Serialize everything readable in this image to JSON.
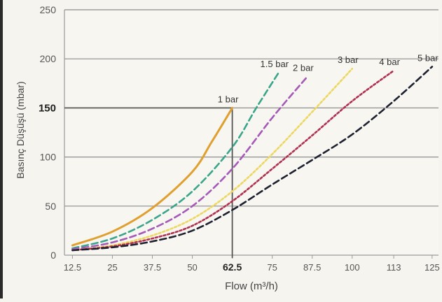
{
  "chart_data": {
    "type": "line",
    "title": "",
    "xlabel": "Flow (m³/h)",
    "ylabel": "Basınç Düşüşü (mbar)",
    "xlim": [
      10,
      127
    ],
    "ylim": [
      0,
      250
    ],
    "x_ticks": [
      12.5,
      25,
      37.5,
      50,
      62.5,
      75,
      87.5,
      100,
      113,
      125
    ],
    "x_tick_labels": [
      "12.5",
      "25",
      "37.5",
      "50",
      "62.5",
      "75",
      "87.5",
      "100",
      "113",
      "125"
    ],
    "y_ticks": [
      0,
      50,
      100,
      150,
      200,
      250
    ],
    "y_tick_labels": [
      "0",
      "50",
      "100",
      "150",
      "200",
      "250"
    ],
    "highlight": {
      "x": 62.5,
      "y": 150,
      "x_label": "62.5",
      "y_label": "150"
    },
    "grid": true,
    "series": [
      {
        "name": "1 bar",
        "color": "#e0a030",
        "dash": "solid",
        "points": [
          [
            12.5,
            10
          ],
          [
            25,
            24
          ],
          [
            37.5,
            48
          ],
          [
            50,
            85
          ],
          [
            56,
            115
          ],
          [
            62.5,
            150
          ]
        ]
      },
      {
        "name": "1.5 bar",
        "color": "#3aa58a",
        "dash": "dash",
        "points": [
          [
            12.5,
            7
          ],
          [
            25,
            17
          ],
          [
            37.5,
            36
          ],
          [
            50,
            65
          ],
          [
            62.5,
            110
          ],
          [
            70,
            150
          ],
          [
            77,
            186
          ]
        ]
      },
      {
        "name": "2 bar",
        "color": "#a55ab8",
        "dash": "dash",
        "points": [
          [
            12.5,
            6
          ],
          [
            25,
            13
          ],
          [
            37.5,
            27
          ],
          [
            50,
            50
          ],
          [
            62.5,
            88
          ],
          [
            75,
            140
          ],
          [
            86,
            182
          ]
        ]
      },
      {
        "name": "3 bar",
        "color": "#ecd860",
        "dash": "dot",
        "points": [
          [
            12.5,
            5
          ],
          [
            25,
            10
          ],
          [
            37.5,
            20
          ],
          [
            50,
            37
          ],
          [
            62.5,
            65
          ],
          [
            75,
            103
          ],
          [
            87.5,
            146
          ],
          [
            100,
            190
          ]
        ]
      },
      {
        "name": "4 bar",
        "color": "#b03050",
        "dash": "dot",
        "points": [
          [
            12.5,
            5
          ],
          [
            25,
            9
          ],
          [
            37.5,
            17
          ],
          [
            50,
            30
          ],
          [
            62.5,
            55
          ],
          [
            75,
            88
          ],
          [
            87.5,
            122
          ],
          [
            100,
            157
          ],
          [
            113,
            188
          ]
        ]
      },
      {
        "name": "5 bar",
        "color": "#1e2130",
        "dash": "dash",
        "points": [
          [
            12.5,
            5
          ],
          [
            25,
            8
          ],
          [
            37.5,
            14
          ],
          [
            50,
            25
          ],
          [
            62.5,
            46
          ],
          [
            75,
            72
          ],
          [
            87.5,
            97
          ],
          [
            100,
            123
          ],
          [
            113,
            157
          ],
          [
            125,
            192
          ]
        ]
      }
    ]
  }
}
